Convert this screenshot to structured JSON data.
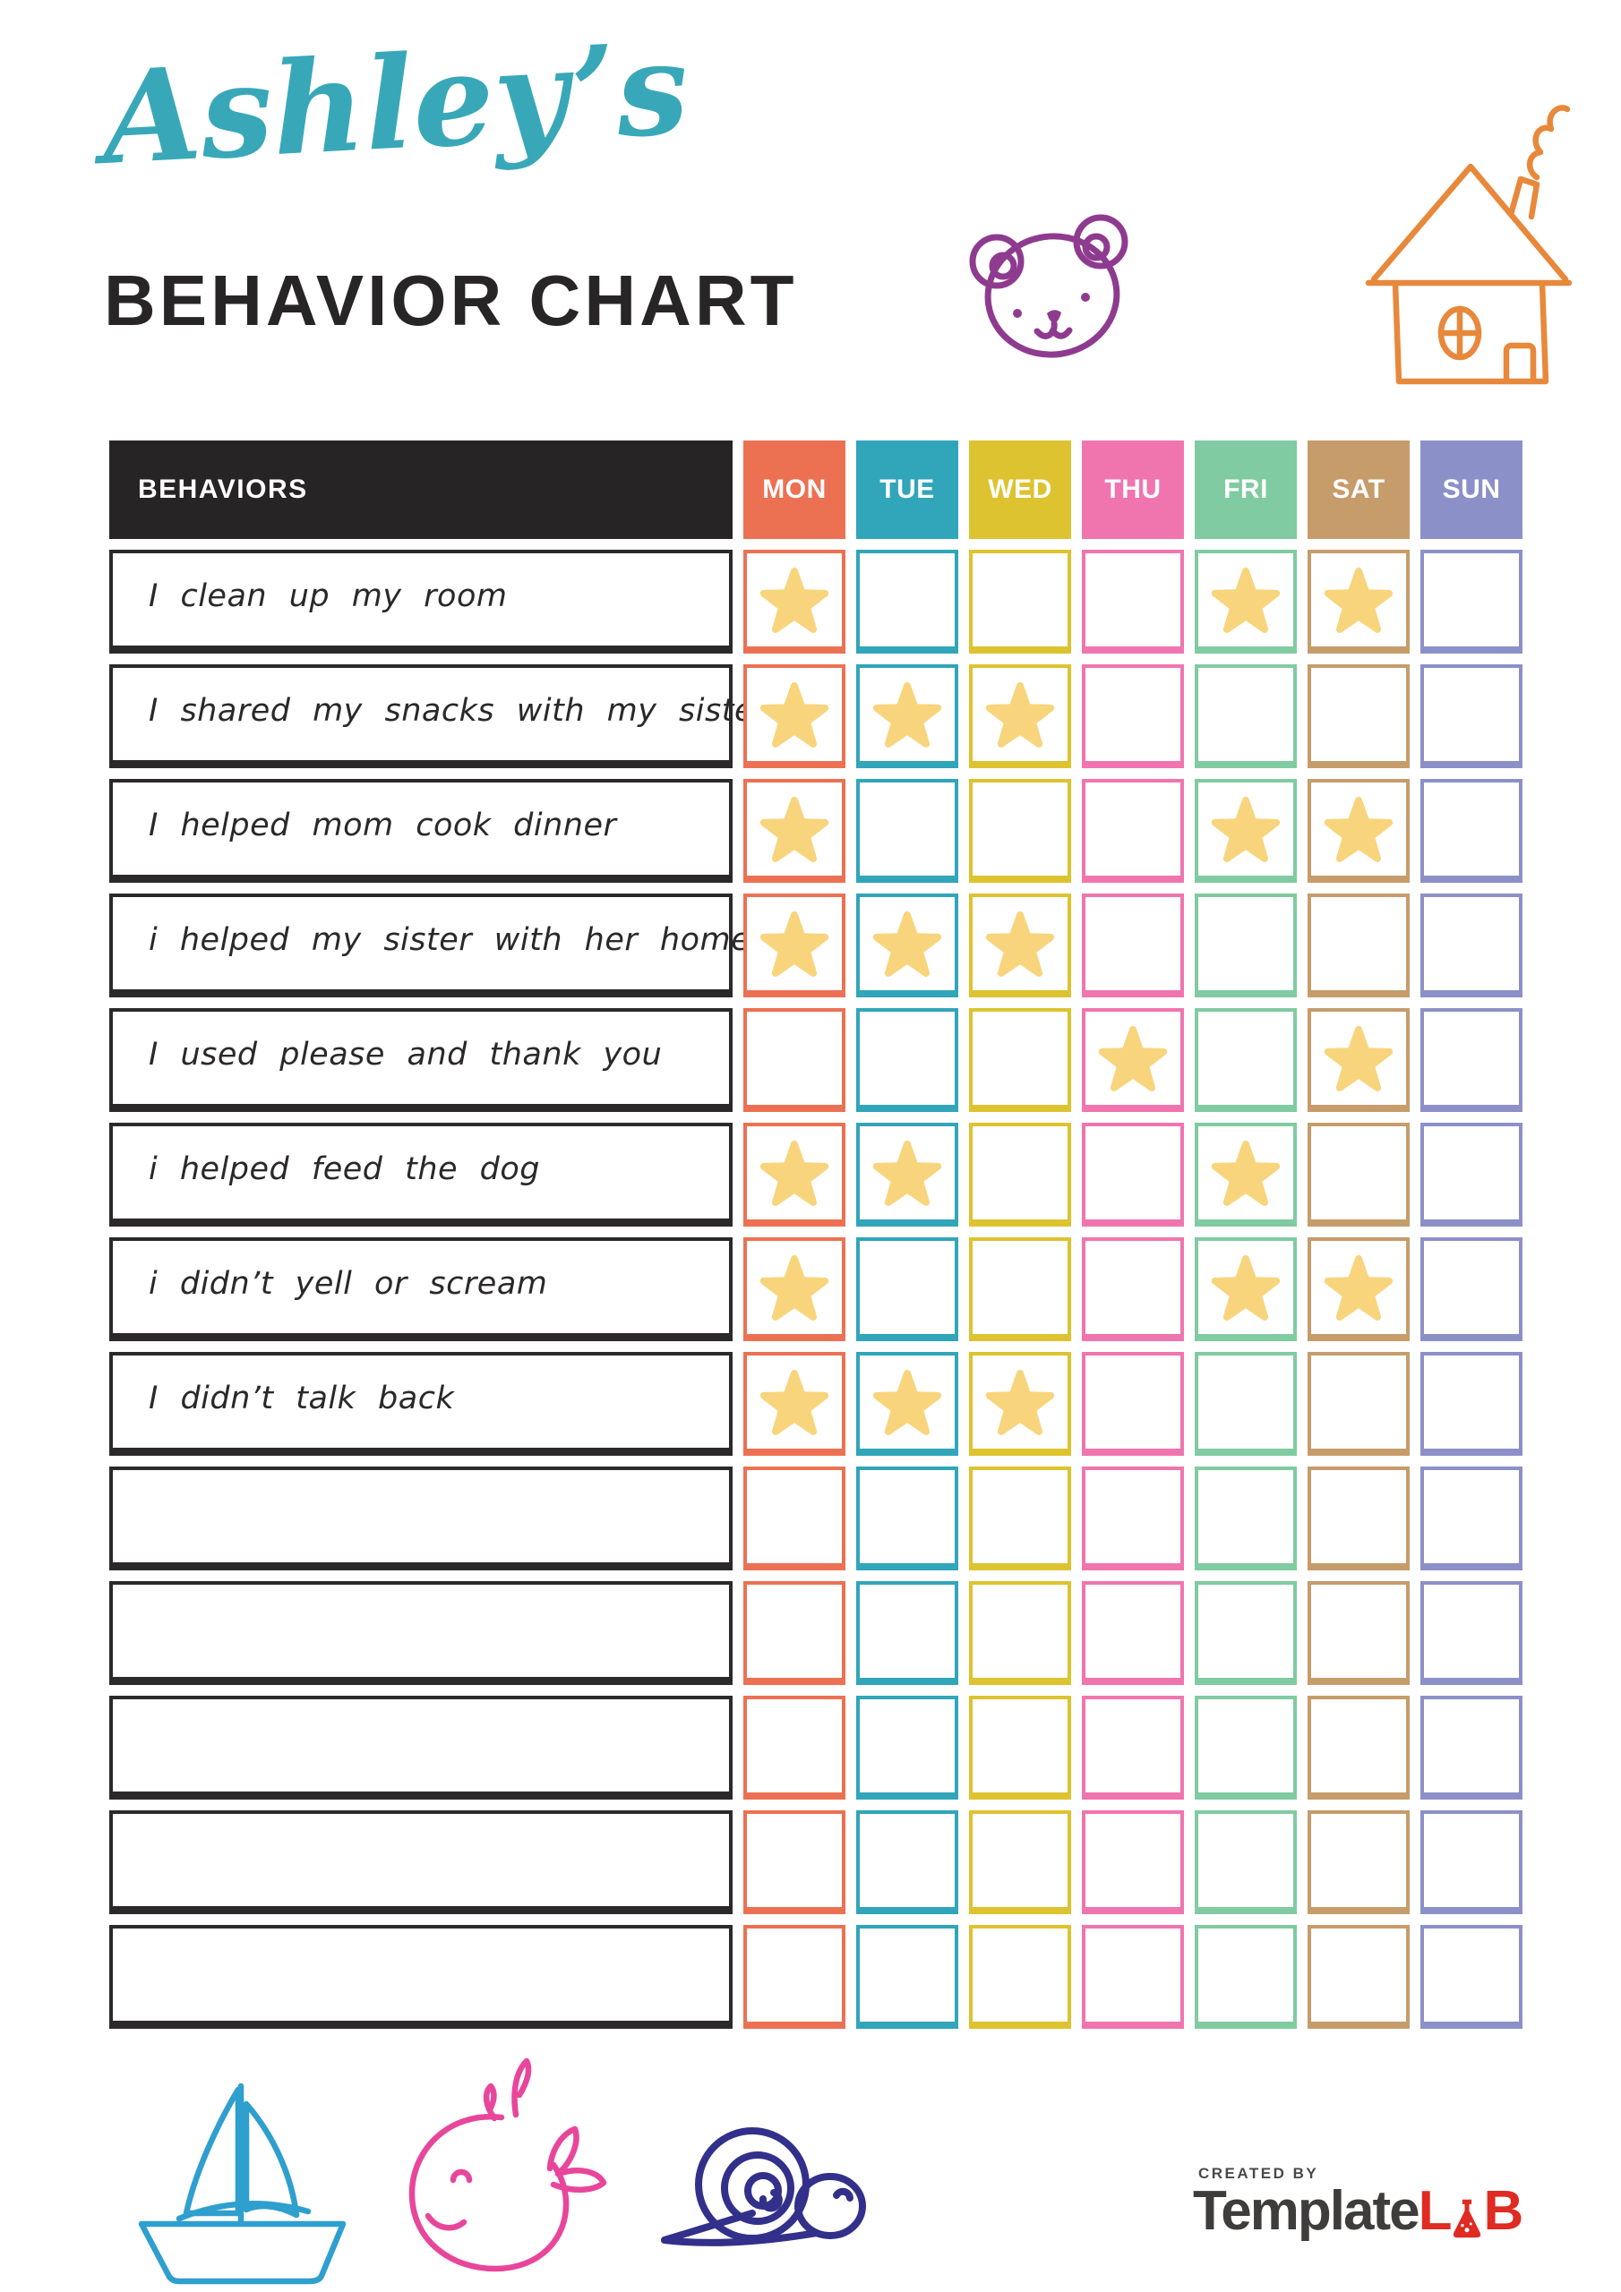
{
  "header": {
    "script_title": "Ashley’s",
    "main_title": "BEHAVIOR CHART"
  },
  "table": {
    "behaviors_header": "BEHAVIORS",
    "days": [
      {
        "label": "MON",
        "color": "#EC7153"
      },
      {
        "label": "TUE",
        "color": "#31A5B9"
      },
      {
        "label": "WED",
        "color": "#DDC32F"
      },
      {
        "label": "THU",
        "color": "#F075AE"
      },
      {
        "label": "FRI",
        "color": "#80CBA1"
      },
      {
        "label": "SAT",
        "color": "#C69C6B"
      },
      {
        "label": "SUN",
        "color": "#8C90C8"
      }
    ],
    "rows": [
      {
        "label": "I clean up my room",
        "stars": [
          1,
          0,
          0,
          0,
          1,
          1,
          0
        ]
      },
      {
        "label": "I shared my snacks with my sister",
        "stars": [
          1,
          1,
          1,
          0,
          0,
          0,
          0
        ]
      },
      {
        "label": "I helped mom cook dinner",
        "stars": [
          1,
          0,
          0,
          0,
          1,
          1,
          0
        ]
      },
      {
        "label": "i helped my sister with her homework",
        "stars": [
          1,
          1,
          1,
          0,
          0,
          0,
          0
        ]
      },
      {
        "label": "I used please and thank you",
        "stars": [
          0,
          0,
          0,
          1,
          0,
          1,
          0
        ]
      },
      {
        "label": "i helped feed the dog",
        "stars": [
          1,
          1,
          0,
          0,
          1,
          0,
          0
        ]
      },
      {
        "label": "i didn’t yell or scream",
        "stars": [
          1,
          0,
          0,
          0,
          1,
          1,
          0
        ]
      },
      {
        "label": "I didn’t talk back",
        "stars": [
          1,
          1,
          1,
          0,
          0,
          0,
          0
        ]
      },
      {
        "label": "",
        "stars": [
          0,
          0,
          0,
          0,
          0,
          0,
          0
        ]
      },
      {
        "label": "",
        "stars": [
          0,
          0,
          0,
          0,
          0,
          0,
          0
        ]
      },
      {
        "label": "",
        "stars": [
          0,
          0,
          0,
          0,
          0,
          0,
          0
        ]
      },
      {
        "label": "",
        "stars": [
          0,
          0,
          0,
          0,
          0,
          0,
          0
        ]
      },
      {
        "label": "",
        "stars": [
          0,
          0,
          0,
          0,
          0,
          0,
          0
        ]
      }
    ]
  },
  "footer": {
    "created_by": "CREATED BY",
    "brand_part1": "Template",
    "brand_lab_l": "L",
    "brand_lab_b": "B"
  },
  "icons": {
    "top": [
      "bear-icon",
      "rocket-icon",
      "house-icon"
    ],
    "bottom": [
      "sailboat-icon",
      "whale-icon",
      "snail-icon"
    ],
    "cell_marker": "star-icon",
    "logo_mark": "flask-icon"
  },
  "colors": {
    "title_teal": "#38A8B9",
    "title_dark": "#272525",
    "header_bg": "#272425",
    "row_border": "#2B292A",
    "text": "#2A2828",
    "star": "#F8D47C",
    "bear": "#8E3B8F",
    "rocket": "#A9C938",
    "house": "#E8883B",
    "boat": "#2E9FCE",
    "whale": "#E8469B",
    "snail": "#32308A",
    "logo_gray": "#3F3C3C",
    "logo_red": "#DF2B22",
    "created_by": "#4A4848"
  }
}
